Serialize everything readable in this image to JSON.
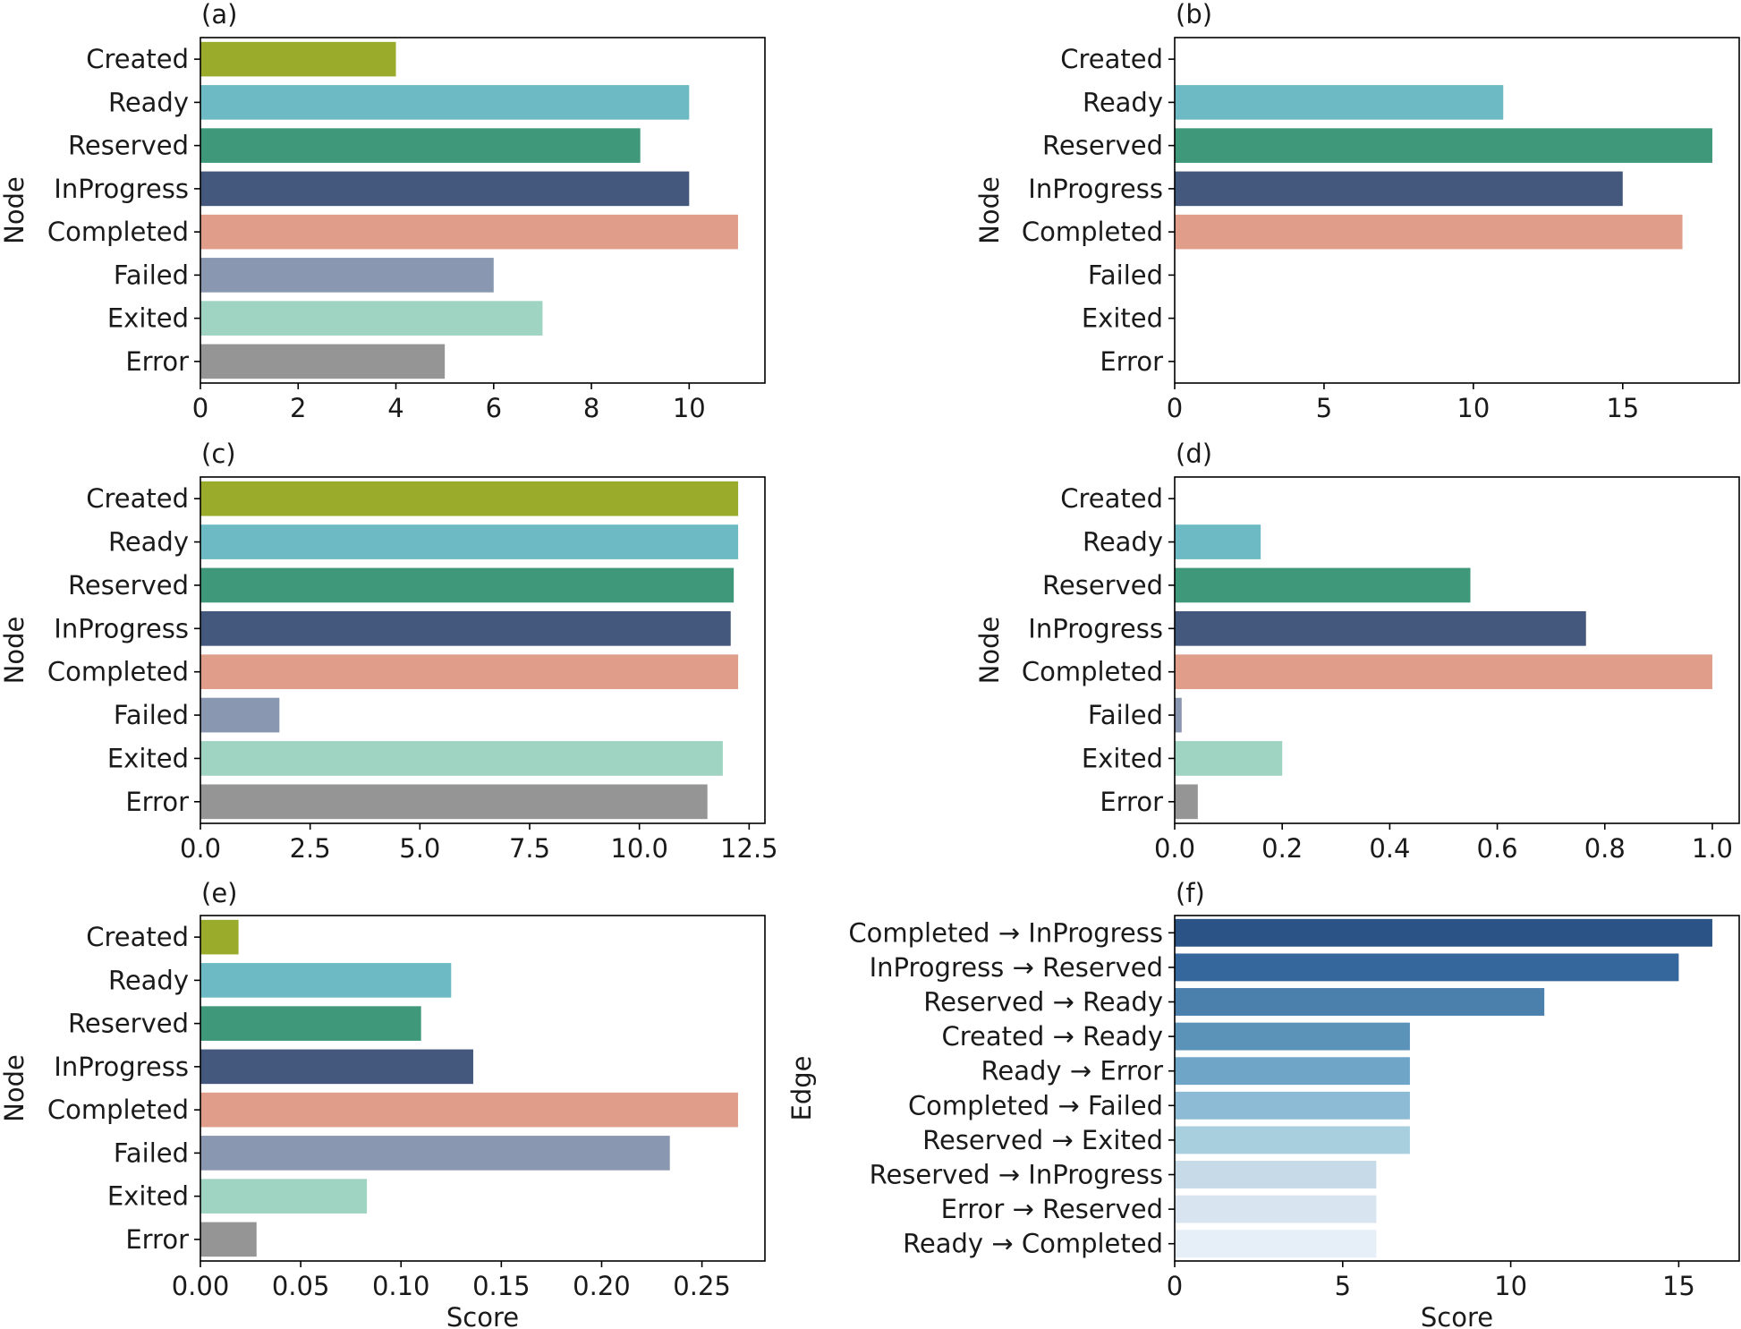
{
  "chart_data": [
    {
      "panel": "(a)",
      "type": "bar",
      "orientation": "horizontal",
      "ylabel": "Node",
      "xlabel": "",
      "categories": [
        "Created",
        "Ready",
        "Reserved",
        "InProgress",
        "Completed",
        "Failed",
        "Exited",
        "Error"
      ],
      "values": [
        4,
        10,
        9,
        10,
        11,
        6,
        7,
        5
      ],
      "colors": [
        "#9aab2b",
        "#6dbac4",
        "#3f9879",
        "#44577d",
        "#df9d8a",
        "#8a97b0",
        "#9fd3c2",
        "#959595"
      ],
      "xlim": [
        0,
        11.55
      ],
      "xticks": [
        0,
        2,
        4,
        6,
        8,
        10
      ],
      "xtick_labels": [
        "0",
        "2",
        "4",
        "6",
        "8",
        "10"
      ]
    },
    {
      "panel": "(b)",
      "type": "bar",
      "orientation": "horizontal",
      "ylabel": "Node",
      "xlabel": "",
      "categories": [
        "Created",
        "Ready",
        "Reserved",
        "InProgress",
        "Completed",
        "Failed",
        "Exited",
        "Error"
      ],
      "values": [
        0,
        11,
        18,
        15,
        17,
        0,
        0,
        0
      ],
      "colors": [
        "#9aab2b",
        "#6dbac4",
        "#3f9879",
        "#44577d",
        "#df9d8a",
        "#8a97b0",
        "#9fd3c2",
        "#959595"
      ],
      "xlim": [
        0,
        18.9
      ],
      "xticks": [
        0,
        5,
        10,
        15
      ],
      "xtick_labels": [
        "0",
        "5",
        "10",
        "15"
      ]
    },
    {
      "panel": "(c)",
      "type": "bar",
      "orientation": "horizontal",
      "ylabel": "Node",
      "xlabel": "",
      "categories": [
        "Created",
        "Ready",
        "Reserved",
        "InProgress",
        "Completed",
        "Failed",
        "Exited",
        "Error"
      ],
      "values": [
        12.25,
        12.25,
        12.15,
        12.08,
        12.25,
        1.8,
        11.9,
        11.55
      ],
      "colors": [
        "#9aab2b",
        "#6dbac4",
        "#3f9879",
        "#44577d",
        "#df9d8a",
        "#8a97b0",
        "#9fd3c2",
        "#959595"
      ],
      "xlim": [
        0,
        12.86
      ],
      "xticks": [
        0,
        2.5,
        5,
        7.5,
        10,
        12.5
      ],
      "xtick_labels": [
        "0.0",
        "2.5",
        "5.0",
        "7.5",
        "10.0",
        "12.5"
      ]
    },
    {
      "panel": "(d)",
      "type": "bar",
      "orientation": "horizontal",
      "ylabel": "Node",
      "xlabel": "",
      "categories": [
        "Created",
        "Ready",
        "Reserved",
        "InProgress",
        "Completed",
        "Failed",
        "Exited",
        "Error"
      ],
      "values": [
        0,
        0.16,
        0.55,
        0.765,
        1.0,
        0.013,
        0.2,
        0.043
      ],
      "colors": [
        "#9aab2b",
        "#6dbac4",
        "#3f9879",
        "#44577d",
        "#df9d8a",
        "#8a97b0",
        "#9fd3c2",
        "#959595"
      ],
      "xlim": [
        0,
        1.05
      ],
      "xticks": [
        0,
        0.2,
        0.4,
        0.6,
        0.8,
        1.0
      ],
      "xtick_labels": [
        "0.0",
        "0.2",
        "0.4",
        "0.6",
        "0.8",
        "1.0"
      ]
    },
    {
      "panel": "(e)",
      "type": "bar",
      "orientation": "horizontal",
      "ylabel": "Node",
      "xlabel": "Score",
      "categories": [
        "Created",
        "Ready",
        "Reserved",
        "InProgress",
        "Completed",
        "Failed",
        "Exited",
        "Error"
      ],
      "values": [
        0.019,
        0.125,
        0.11,
        0.136,
        0.268,
        0.234,
        0.083,
        0.028
      ],
      "colors": [
        "#9aab2b",
        "#6dbac4",
        "#3f9879",
        "#44577d",
        "#df9d8a",
        "#8a97b0",
        "#9fd3c2",
        "#959595"
      ],
      "xlim": [
        0,
        0.2814
      ],
      "xticks": [
        0,
        0.05,
        0.1,
        0.15,
        0.2,
        0.25
      ],
      "xtick_labels": [
        "0.00",
        "0.05",
        "0.10",
        "0.15",
        "0.20",
        "0.25"
      ]
    },
    {
      "panel": "(f)",
      "type": "bar",
      "orientation": "horizontal",
      "ylabel": "Edge",
      "xlabel": "Score",
      "categories": [
        "Completed → InProgress",
        "InProgress → Reserved",
        "Reserved → Ready",
        "Created → Ready",
        "Ready → Error",
        "Completed → Failed",
        "Reserved → Exited",
        "Reserved → InProgress",
        "Error → Reserved",
        "Ready → Completed"
      ],
      "values": [
        16,
        15,
        11,
        7,
        7,
        7,
        7,
        6,
        6,
        6
      ],
      "colors": [
        "#2b5385",
        "#35679c",
        "#4b7fac",
        "#5a92b8",
        "#6fa5c7",
        "#8dbad4",
        "#a8cfde",
        "#c6dae8",
        "#d8e5f1",
        "#e6eef8"
      ],
      "xlim": [
        0,
        16.8
      ],
      "xticks": [
        0,
        5,
        10,
        15
      ],
      "xtick_labels": [
        "0",
        "5",
        "10",
        "15"
      ]
    }
  ]
}
